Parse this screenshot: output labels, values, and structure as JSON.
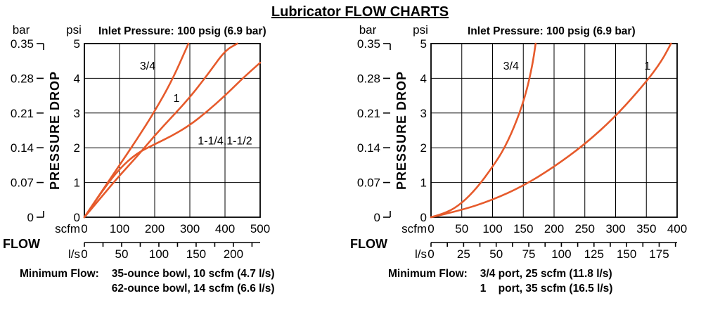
{
  "title": "Lubricator FLOW CHARTS",
  "labels": {
    "flow": "FLOW",
    "pressure_drop": "PRESSURE DROP",
    "bar": "bar",
    "psi": "psi",
    "scfm": "scfm",
    "ls": "l/s"
  },
  "style": {
    "curve_color": "#E65A2B",
    "grid_color": "#000000"
  },
  "ls_per_scfm": 0.4719,
  "chart_data": [
    {
      "type": "line",
      "title": "Inlet Pressure: 100 psig (6.9 bar)",
      "xlabel": "FLOW",
      "ylabel": "PRESSURE DROP",
      "psi_ticks": [
        0,
        1,
        2,
        3,
        4,
        5
      ],
      "bar_ticks": [
        "0",
        "0.07",
        "0.14",
        "0.21",
        "0.28",
        "0.35"
      ],
      "scfm_ticks": [
        0,
        100,
        200,
        300,
        400,
        500
      ],
      "ls_ticks": [
        0,
        50,
        100,
        150,
        200
      ],
      "ls_minor_step": 25,
      "series": [
        {
          "name": "3/4",
          "label_at": {
            "scfm": 180,
            "psi": 4.35
          },
          "points_scfm_psi": [
            [
              0,
              0
            ],
            [
              50,
              0.75
            ],
            [
              100,
              1.5
            ],
            [
              150,
              2.25
            ],
            [
              200,
              3.05
            ],
            [
              250,
              3.95
            ],
            [
              296,
              5
            ]
          ]
        },
        {
          "name": "1",
          "label_at": {
            "scfm": 262,
            "psi": 3.42
          },
          "points_scfm_psi": [
            [
              0,
              0
            ],
            [
              50,
              0.6
            ],
            [
              100,
              1.2
            ],
            [
              150,
              1.75
            ],
            [
              200,
              2.35
            ],
            [
              250,
              2.9
            ],
            [
              300,
              3.45
            ],
            [
              350,
              4.1
            ],
            [
              400,
              4.8
            ],
            [
              435,
              5
            ]
          ]
        },
        {
          "name": "1-1/4,1-1/2",
          "label_at": {
            "scfm": 400,
            "psi": 2.2
          },
          "points_scfm_psi": [
            [
              0,
              0
            ],
            [
              50,
              0.75
            ],
            [
              100,
              1.4
            ],
            [
              150,
              1.85
            ],
            [
              200,
              2.1
            ],
            [
              250,
              2.35
            ],
            [
              300,
              2.65
            ],
            [
              350,
              3.05
            ],
            [
              400,
              3.5
            ],
            [
              450,
              4.0
            ],
            [
              500,
              4.45
            ]
          ]
        }
      ],
      "min_flow": {
        "label": "Minimum Flow:",
        "lines": [
          "35-ounce bowl, 10 scfm (4.7 l/s)",
          "62-ounce bowl, 14 scfm (6.6 l/s)"
        ]
      }
    },
    {
      "type": "line",
      "title": "Inlet Pressure: 100 psig (6.9 bar)",
      "xlabel": "FLOW",
      "ylabel": "PRESSURE DROP",
      "psi_ticks": [
        0,
        1,
        2,
        3,
        4,
        5
      ],
      "bar_ticks": [
        "0",
        "0.07",
        "0.14",
        "0.21",
        "0.28",
        "0.35"
      ],
      "scfm_ticks": [
        0,
        50,
        100,
        150,
        200,
        250,
        300,
        350,
        400
      ],
      "ls_ticks": [
        0,
        25,
        50,
        75,
        100,
        125,
        150,
        175
      ],
      "ls_minor_step": 12.5,
      "series": [
        {
          "name": "3/4",
          "label_at": {
            "scfm": 130,
            "psi": 4.35
          },
          "points_scfm_psi": [
            [
              0,
              0
            ],
            [
              25,
              0.12
            ],
            [
              50,
              0.4
            ],
            [
              75,
              0.85
            ],
            [
              100,
              1.45
            ],
            [
              120,
              2.0
            ],
            [
              140,
              2.8
            ],
            [
              155,
              3.6
            ],
            [
              165,
              4.4
            ],
            [
              170,
              5
            ]
          ]
        },
        {
          "name": "1",
          "label_at": {
            "scfm": 352,
            "psi": 4.35
          },
          "points_scfm_psi": [
            [
              0,
              0
            ],
            [
              50,
              0.2
            ],
            [
              100,
              0.5
            ],
            [
              150,
              0.9
            ],
            [
              200,
              1.45
            ],
            [
              250,
              2.1
            ],
            [
              300,
              2.9
            ],
            [
              350,
              3.9
            ],
            [
              375,
              4.5
            ],
            [
              390,
              5
            ]
          ]
        }
      ],
      "min_flow": {
        "label": "Minimum Flow:",
        "lines": [
          "3/4 port, 25 scfm (11.8 l/s)",
          "1    port, 35 scfm (16.5 l/s)"
        ]
      }
    }
  ]
}
